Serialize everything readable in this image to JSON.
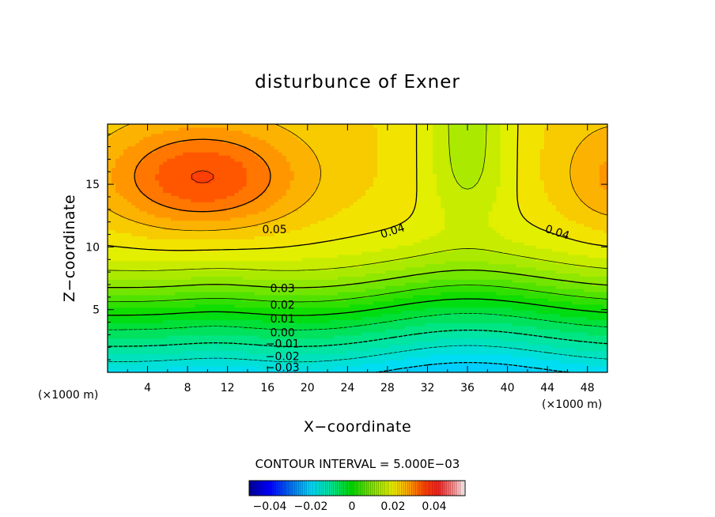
{
  "chart_data": {
    "type": "contour",
    "title": "disturbunce of Exner",
    "xlabel": "X−coordinate",
    "ylabel": "Z−coordinate",
    "x_unit": "(×1000 m)",
    "z_unit": "(×1000 m)",
    "xlim": [
      0,
      50
    ],
    "zlim": [
      0,
      19.8
    ],
    "x_ticks": [
      4,
      8,
      12,
      16,
      20,
      24,
      28,
      32,
      36,
      40,
      44,
      48
    ],
    "x_tick_labels": [
      "4",
      "8",
      "12",
      "16",
      "20",
      "24",
      "28",
      "32",
      "36",
      "40",
      "44",
      "48"
    ],
    "z_ticks": [
      5,
      10,
      15
    ],
    "z_tick_labels": [
      "5",
      "10",
      "15"
    ],
    "contour_interval_text": "CONTOUR INTERVAL = 5.000E−03",
    "contour_interval": 0.005,
    "contour_levels": [
      -0.035,
      -0.03,
      -0.025,
      -0.02,
      -0.015,
      -0.01,
      -0.005,
      0,
      0.005,
      0.01,
      0.015,
      0.02,
      0.025,
      0.03,
      0.035,
      0.04,
      0.045,
      0.05
    ],
    "color_range": [
      -0.05,
      0.055
    ],
    "contour_labels": [
      {
        "text": "0.05",
        "x": 16.7,
        "z": 11.4
      },
      {
        "text": "0.04",
        "x": 28.5,
        "z": 11.3
      },
      {
        "text": "0.04",
        "x": 45.0,
        "z": 11.2
      },
      {
        "text": "0.03",
        "x": 17.5,
        "z": 6.7
      },
      {
        "text": "0.02",
        "x": 17.5,
        "z": 5.4
      },
      {
        "text": "0.01",
        "x": 17.5,
        "z": 4.3
      },
      {
        "text": "0.00",
        "x": 17.5,
        "z": 3.2
      },
      {
        "text": "−0.01",
        "x": 17.5,
        "z": 2.3
      },
      {
        "text": "−0.02",
        "x": 17.5,
        "z": 1.3
      },
      {
        "text": "−0.03",
        "x": 17.5,
        "z": 0.4
      }
    ],
    "colorbar": {
      "range": [
        -0.05,
        0.055
      ],
      "tick_values": [
        -0.04,
        -0.02,
        0,
        0.02,
        0.04
      ],
      "tick_labels": [
        "−0.04",
        "−0.02",
        "0",
        "0.02",
        "0.04"
      ]
    }
  }
}
